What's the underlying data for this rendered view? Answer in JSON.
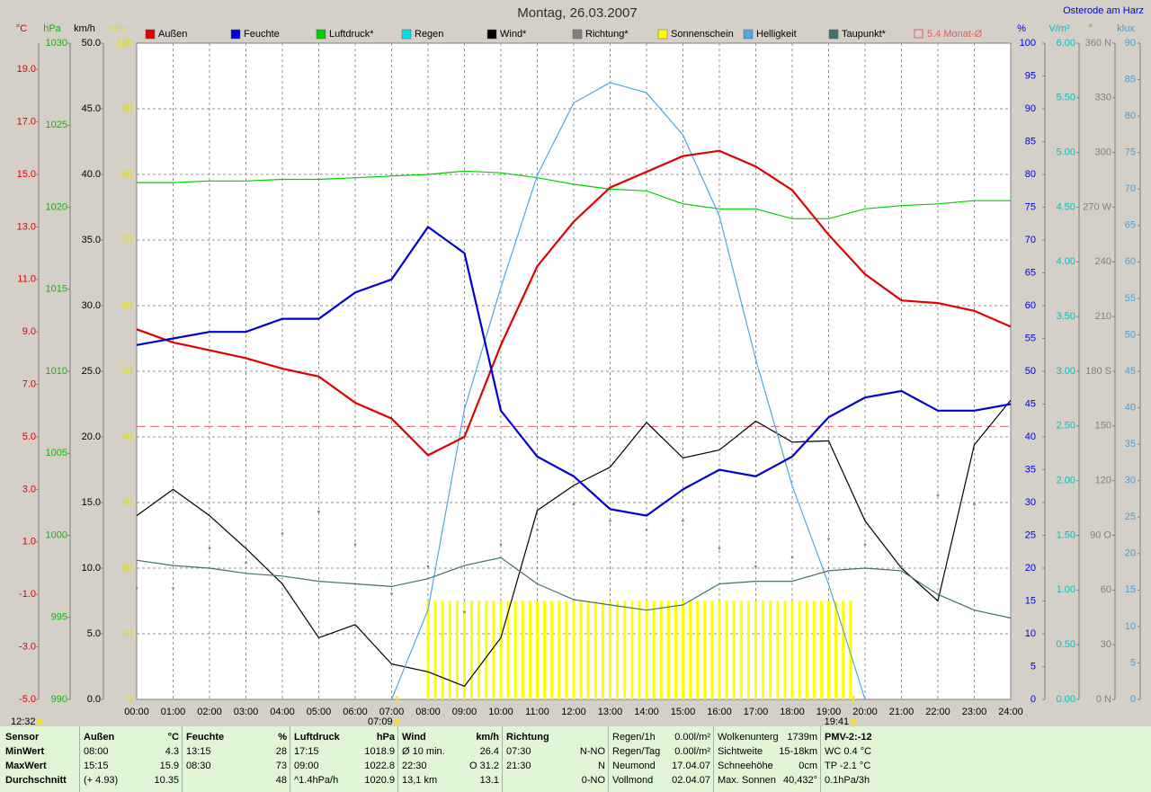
{
  "chart_data": {
    "type": "line",
    "title": "Montag, 26.03.2007",
    "location": "Osterode am Harz",
    "grid": true,
    "x": [
      0,
      1,
      2,
      3,
      4,
      5,
      6,
      7,
      8,
      9,
      10,
      11,
      12,
      13,
      14,
      15,
      16,
      17,
      18,
      19,
      20,
      21,
      22,
      23,
      24
    ],
    "xlim": [
      0,
      24
    ],
    "xticks": [
      {
        "value": 0,
        "label": "00:00"
      },
      {
        "value": 1,
        "label": "01:00"
      },
      {
        "value": 2,
        "label": "02:00"
      },
      {
        "value": 3,
        "label": "03:00"
      },
      {
        "value": 4,
        "label": "04:00"
      },
      {
        "value": 5,
        "label": "05:00"
      },
      {
        "value": 6,
        "label": "06:00"
      },
      {
        "value": 7,
        "label": "07:00"
      },
      {
        "value": 8,
        "label": "08:00"
      },
      {
        "value": 9,
        "label": "09:00"
      },
      {
        "value": 10,
        "label": "10:00"
      },
      {
        "value": 11,
        "label": "11:00"
      },
      {
        "value": 12,
        "label": "12:00"
      },
      {
        "value": 13,
        "label": "13:00"
      },
      {
        "value": 14,
        "label": "14:00"
      },
      {
        "value": 15,
        "label": "15:00"
      },
      {
        "value": 16,
        "label": "16:00"
      },
      {
        "value": 17,
        "label": "17:00"
      },
      {
        "value": 18,
        "label": "18:00"
      },
      {
        "value": 19,
        "label": "19:00"
      },
      {
        "value": 20,
        "label": "20:00"
      },
      {
        "value": 21,
        "label": "21:00"
      },
      {
        "value": 22,
        "label": "22:00"
      },
      {
        "value": 23,
        "label": "23:00"
      },
      {
        "value": 24,
        "label": "24:00"
      }
    ],
    "axes": [
      {
        "name": "°C",
        "color": "#e00000",
        "ylim": [
          -5,
          20
        ],
        "yticks": [
          {
            "value": -5,
            "label": "-5.0"
          },
          {
            "value": -3,
            "label": "-3.0"
          },
          {
            "value": -1,
            "label": "-1.0"
          },
          {
            "value": 1,
            "label": "1.0"
          },
          {
            "value": 3,
            "label": "3.0"
          },
          {
            "value": 5,
            "label": "5.0"
          },
          {
            "value": 7,
            "label": "7.0"
          },
          {
            "value": 9,
            "label": "9.0"
          },
          {
            "value": 11,
            "label": "11.0"
          },
          {
            "value": 13,
            "label": "13.0"
          },
          {
            "value": 15,
            "label": "15.0"
          },
          {
            "value": 17,
            "label": "17.0"
          },
          {
            "value": 19,
            "label": "19.0"
          }
        ]
      },
      {
        "name": "hPa",
        "color": "#00c000",
        "ylim": [
          990,
          1030
        ],
        "yticks": [
          990,
          995,
          1000,
          1005,
          1010,
          1015,
          1020,
          1025,
          1030
        ]
      },
      {
        "name": "km/h",
        "color": "#000000",
        "ylim": [
          0,
          50
        ],
        "yticks": [
          {
            "value": 0,
            "label": "0.0"
          },
          {
            "value": 5,
            "label": "5.0"
          },
          {
            "value": 10,
            "label": "10.0"
          },
          {
            "value": 15,
            "label": "15.0"
          },
          {
            "value": 20,
            "label": "20.0"
          },
          {
            "value": 25,
            "label": "25.0"
          },
          {
            "value": 30,
            "label": "30.0"
          },
          {
            "value": 35,
            "label": "35.0"
          },
          {
            "value": 40,
            "label": "40.0"
          },
          {
            "value": 45,
            "label": "45.0"
          },
          {
            "value": 50,
            "label": "50.0"
          }
        ]
      },
      {
        "name": "min",
        "color": "#e0e000",
        "ylim": [
          0,
          100
        ],
        "yticks": [
          0,
          10,
          20,
          30,
          40,
          50,
          60,
          70,
          80,
          90,
          100
        ]
      },
      {
        "name": "%",
        "color": "#0000e0",
        "ylim": [
          0,
          100
        ],
        "yticks": [
          0,
          5,
          10,
          15,
          20,
          25,
          30,
          35,
          40,
          45,
          50,
          55,
          60,
          65,
          70,
          75,
          80,
          85,
          90,
          95,
          100
        ]
      },
      {
        "name": "V/m²",
        "color": "#00c0c0",
        "ylim": [
          0,
          6
        ],
        "yticks": [
          {
            "value": 0,
            "label": "0.00"
          },
          {
            "value": 0.5,
            "label": "0.50"
          },
          {
            "value": 1,
            "label": "1.00"
          },
          {
            "value": 1.5,
            "label": "1.50"
          },
          {
            "value": 2,
            "label": "2.00"
          },
          {
            "value": 2.5,
            "label": "2.50"
          },
          {
            "value": 3,
            "label": "3.00"
          },
          {
            "value": 3.5,
            "label": "3.50"
          },
          {
            "value": 4,
            "label": "4.00"
          },
          {
            "value": 4.5,
            "label": "4.50"
          },
          {
            "value": 5,
            "label": "5.00"
          },
          {
            "value": 5.5,
            "label": "5.50"
          },
          {
            "value": 6,
            "label": "6.00"
          }
        ]
      },
      {
        "name": "°",
        "color": "#808080",
        "ylim": [
          0,
          360
        ],
        "yticks": [
          {
            "value": 0,
            "label": "0 N"
          },
          30,
          60,
          {
            "value": 90,
            "label": "90 O"
          },
          120,
          150,
          {
            "value": 180,
            "label": "180 S"
          },
          210,
          240,
          {
            "value": 270,
            "label": "270 W"
          },
          300,
          330,
          {
            "value": 360,
            "label": "360 N"
          }
        ]
      },
      {
        "name": "klux",
        "color": "#40a0e0",
        "ylim": [
          0,
          90
        ],
        "yticks": [
          0,
          5,
          10,
          15,
          20,
          25,
          30,
          35,
          40,
          45,
          50,
          55,
          60,
          65,
          70,
          75,
          80,
          85,
          90
        ]
      }
    ],
    "series": [
      {
        "name": "Außen",
        "color": "#e00000",
        "axis": "°C",
        "style": "line",
        "values": [
          9.1,
          8.6,
          8.3,
          8.0,
          7.6,
          7.3,
          6.3,
          5.7,
          4.3,
          5.0,
          8.5,
          11.5,
          13.2,
          14.5,
          15.1,
          15.7,
          15.9,
          15.3,
          14.4,
          12.7,
          11.2,
          10.2,
          10.1,
          9.8,
          9.2
        ]
      },
      {
        "name": "Feuchte",
        "color": "#0000d0",
        "axis": "%",
        "style": "line",
        "values": [
          54,
          55,
          56,
          56,
          58,
          58,
          62,
          64,
          72,
          68,
          44,
          37,
          34,
          29,
          28,
          32,
          35,
          34,
          37,
          43,
          46,
          47,
          44,
          44,
          45
        ]
      },
      {
        "name": "Luftdruck*",
        "color": "#00d000",
        "axis": "hPa",
        "style": "line",
        "values": [
          1021.5,
          1021.5,
          1021.6,
          1021.6,
          1021.7,
          1021.7,
          1021.8,
          1021.9,
          1022.0,
          1022.2,
          1022.1,
          1021.8,
          1021.4,
          1021.1,
          1021.0,
          1020.2,
          1019.9,
          1019.9,
          1019.3,
          1019.3,
          1019.9,
          1020.1,
          1020.2,
          1020.4,
          1020.4
        ]
      },
      {
        "name": "Regen",
        "color": "#00e0e0"
      },
      {
        "name": "Wind*",
        "color": "#000000",
        "axis": "km/h",
        "style": "line",
        "values": [
          14.0,
          16.0,
          14.0,
          11.5,
          8.8,
          4.7,
          5.7,
          2.7,
          2.1,
          1.0,
          4.7,
          14.4,
          16.3,
          17.7,
          21.1,
          18.4,
          19.0,
          21.2,
          19.6,
          19.7,
          13.6,
          10.0,
          7.5,
          19.4,
          22.8
        ]
      },
      {
        "name": "Richtung*",
        "color": "#808080",
        "axis": "°",
        "style": "dots",
        "values": [
          61,
          61,
          83,
          75,
          91,
          103,
          85,
          58,
          73,
          48,
          85,
          93,
          107,
          98,
          93,
          98,
          83,
          73,
          78,
          88,
          85,
          73,
          112,
          107,
          null
        ]
      },
      {
        "name": "Sonnenschein",
        "color": "#ffff00",
        "axis": "min",
        "style": "bars",
        "x": [
          8,
          8.2,
          8.4,
          8.6,
          8.8,
          9,
          9.2,
          9.4,
          9.6,
          9.8,
          10,
          10.2,
          10.4,
          10.6,
          10.8,
          11,
          11.2,
          11.4,
          11.6,
          11.8,
          12,
          12.2,
          12.4,
          12.6,
          12.8,
          13,
          13.2,
          13.4,
          13.6,
          13.8,
          14,
          14.2,
          14.4,
          14.6,
          14.8,
          15,
          15.2,
          15.4,
          15.6,
          15.8,
          16,
          16.2,
          16.4,
          16.6,
          16.8,
          17,
          17.2,
          17.4,
          17.6,
          17.8,
          18,
          18.2,
          18.4,
          18.6,
          18.8,
          19,
          19.2,
          19.4,
          19.6
        ],
        "values": [
          15,
          15,
          15,
          15,
          15,
          15,
          15,
          15,
          15,
          15,
          15,
          15,
          15,
          15,
          15,
          15,
          15,
          15,
          15,
          15,
          15,
          15,
          15,
          15,
          15,
          15,
          15,
          15,
          15,
          15,
          15,
          15,
          15,
          15,
          15,
          15,
          15,
          15,
          15,
          15,
          15,
          15,
          15,
          15,
          15,
          15,
          15,
          15,
          15,
          15,
          15,
          15,
          15,
          15,
          15,
          15,
          15,
          15,
          15
        ]
      },
      {
        "name": "Helligkeit",
        "color": "#50a8e0",
        "axis": "klux",
        "style": "line",
        "values": [
          null,
          null,
          null,
          null,
          null,
          null,
          null,
          0,
          12.3,
          39.8,
          56.5,
          71.9,
          81.8,
          84.6,
          83.2,
          77.4,
          66.3,
          46.6,
          29.3,
          15.8,
          0,
          null,
          null,
          null,
          null
        ]
      },
      {
        "name": "Taupunkt*",
        "color": "#407070",
        "axis": "°C",
        "style": "line",
        "values": [
          0.3,
          0.1,
          0.0,
          -0.2,
          -0.3,
          -0.5,
          -0.6,
          -0.7,
          -0.4,
          0.1,
          0.4,
          -0.6,
          -1.2,
          -1.4,
          -1.6,
          -1.4,
          -0.6,
          -0.5,
          -0.5,
          -0.1,
          0.0,
          -0.1,
          -1.0,
          -1.6,
          -1.9
        ]
      }
    ],
    "reference_line": {
      "name": "5.4 Monat-Ø",
      "value": 5.4,
      "color": "#e06060",
      "axis": "°C"
    },
    "solar_noon": "12:32",
    "sunrise": {
      "x": 7.15,
      "label": "07:09"
    },
    "sunset": {
      "x": 19.683,
      "label": "19:41"
    }
  },
  "footer": {
    "columns": [
      [
        [
          "Sensor"
        ],
        [
          "MinWert"
        ],
        [
          "MaxWert"
        ],
        [
          "Durchschnitt"
        ]
      ],
      [
        [
          "Außen",
          "°C"
        ],
        [
          "08:00",
          "4.3"
        ],
        [
          "15:15",
          "15.9"
        ],
        [
          "(+ 4.93)",
          "10.35"
        ]
      ],
      [
        [
          "Feuchte",
          "%"
        ],
        [
          "13:15",
          "28"
        ],
        [
          "08:30",
          "73"
        ],
        [
          null,
          "48"
        ]
      ],
      [
        [
          "Luftdruck",
          "hPa"
        ],
        [
          "17:15",
          "1018.9"
        ],
        [
          "09:00",
          "1022.8"
        ],
        [
          "^1.4hPa/h",
          "1020.9"
        ]
      ],
      [
        [
          "Wind",
          "km/h"
        ],
        [
          "Ø 10 min.",
          "26.4"
        ],
        [
          "22:30",
          "O 31.2"
        ],
        [
          "13,1 km",
          "13.1"
        ]
      ],
      [
        [
          "Richtung"
        ],
        [
          "07:30",
          "N-NO"
        ],
        [
          "21:30",
          "N"
        ],
        [
          null,
          "0-NO"
        ]
      ],
      [
        [
          "Regen/1h",
          "0.00l/m²"
        ],
        [
          "Regen/Tag",
          "0.00l/m²"
        ],
        [
          "Neumond",
          "17.04.07"
        ],
        [
          "Vollmond",
          "02.04.07"
        ]
      ],
      [
        [
          "Wolkenunterg",
          "1739m"
        ],
        [
          "Sichtweite",
          "15-18km"
        ],
        [
          "Schneehöhe",
          "0cm"
        ],
        [
          "Max. Sonnen",
          "40,432°"
        ]
      ],
      [
        [
          "PMV-2:-12"
        ],
        [
          "WC 0.4 °C"
        ],
        [
          "TP -2.1 °C"
        ],
        [
          "0.1hPa/3h"
        ]
      ]
    ]
  }
}
